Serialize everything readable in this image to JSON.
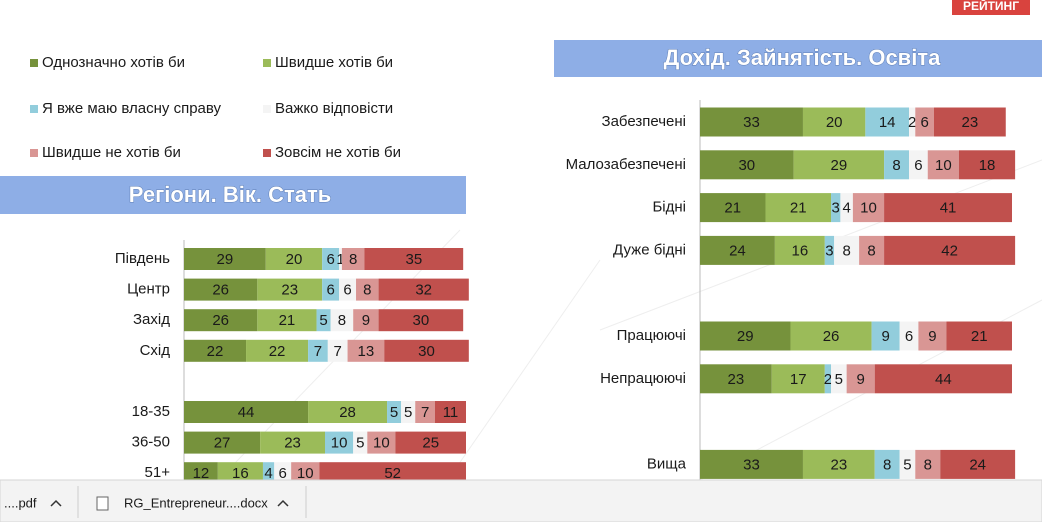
{
  "logo": "РЕЙТИНГ",
  "chart_data": [
    {
      "type": "bar",
      "orientation": "horizontal",
      "stacked": true,
      "title": "Регіони. Вік. Стать",
      "categories": [
        "Південь",
        "Центр",
        "Захід",
        "Схід",
        null,
        "18-35",
        "36-50",
        "51+"
      ],
      "xlim": [
        0,
        100
      ],
      "series": [
        {
          "name": "Однозначно хотів би",
          "color": "#76923c",
          "values": [
            29,
            26,
            26,
            22,
            null,
            44,
            27,
            12
          ]
        },
        {
          "name": "Швидше хотів би",
          "color": "#9bbb59",
          "values": [
            20,
            23,
            21,
            22,
            null,
            28,
            23,
            16
          ]
        },
        {
          "name": "Я вже маю власну справу",
          "color": "#92cddc",
          "values": [
            6,
            6,
            5,
            7,
            null,
            5,
            10,
            4
          ]
        },
        {
          "name": "Важко відповісти",
          "color": "#f4f4f4",
          "values": [
            1,
            6,
            8,
            7,
            null,
            5,
            5,
            6
          ]
        },
        {
          "name": "Швидше не хотів би",
          "color": "#d99694",
          "values": [
            8,
            8,
            9,
            13,
            null,
            7,
            10,
            10
          ]
        },
        {
          "name": "Зовсім не хотів би",
          "color": "#c0504d",
          "values": [
            35,
            32,
            30,
            30,
            null,
            11,
            25,
            52
          ]
        }
      ]
    },
    {
      "type": "bar",
      "orientation": "horizontal",
      "stacked": true,
      "title": "Дохід. Зайнятість. Освіта",
      "categories": [
        "Забезпечені",
        "Малозабезпечені",
        "Бідні",
        "Дуже бідні",
        null,
        "Працюючі",
        "Непрацюючі",
        null,
        "Вища"
      ],
      "xlim": [
        0,
        100
      ],
      "series": [
        {
          "color": "#76923c",
          "values": [
            33,
            30,
            21,
            24,
            null,
            29,
            23,
            null,
            33
          ]
        },
        {
          "color": "#9bbb59",
          "values": [
            20,
            29,
            21,
            16,
            null,
            26,
            17,
            null,
            23
          ]
        },
        {
          "color": "#92cddc",
          "values": [
            14,
            8,
            3,
            3,
            null,
            9,
            2,
            null,
            8
          ]
        },
        {
          "color": "#f4f4f4",
          "values": [
            2,
            6,
            4,
            8,
            null,
            6,
            5,
            null,
            5
          ]
        },
        {
          "color": "#d99694",
          "values": [
            6,
            10,
            10,
            8,
            null,
            9,
            9,
            null,
            8
          ]
        },
        {
          "color": "#c0504d",
          "values": [
            23,
            18,
            41,
            42,
            null,
            21,
            44,
            null,
            24
          ]
        }
      ]
    }
  ],
  "download_bar": {
    "items": [
      "....pdf",
      "RG_Entrepreneur....docx"
    ]
  }
}
